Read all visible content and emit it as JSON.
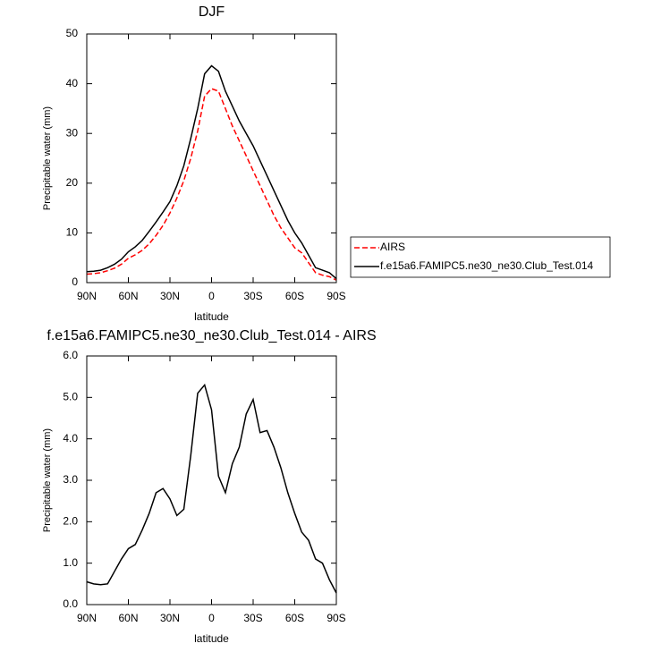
{
  "chart_data": [
    {
      "type": "line",
      "title": "DJF",
      "x_label": "latitude",
      "y_label": "Precipitable water (mm)",
      "x": [
        90,
        85,
        80,
        75,
        70,
        65,
        60,
        55,
        50,
        45,
        40,
        35,
        30,
        25,
        20,
        15,
        10,
        5,
        0,
        -5,
        -10,
        -15,
        -20,
        -25,
        -30,
        -35,
        -40,
        -45,
        -50,
        -55,
        -60,
        -65,
        -70,
        -75,
        -80,
        -85,
        -90
      ],
      "series": [
        {
          "name": "AIRS",
          "color": "#ff0000",
          "dash": true,
          "values": [
            1.7,
            1.8,
            2,
            2.4,
            2.9,
            3.7,
            4.9,
            5.6,
            6.5,
            7.8,
            9.5,
            11.5,
            14,
            17,
            20.5,
            25,
            30.5,
            37.5,
            39,
            38.5,
            35,
            31.5,
            28.5,
            25.5,
            22.5,
            19.5,
            16.5,
            13.5,
            11,
            9,
            7,
            6,
            4,
            2,
            1.5,
            1.2,
            0.5
          ]
        },
        {
          "name": "f.e15a6.FAMIPC5.ne30_ne30.Club_Test.014",
          "color": "#000000",
          "dash": false,
          "values": [
            2.2,
            2.3,
            2.5,
            3,
            3.7,
            4.7,
            6.2,
            7.2,
            8.5,
            10.3,
            12.2,
            14.2,
            16.3,
            19.5,
            23.5,
            29,
            35,
            42,
            43.6,
            42.5,
            38.5,
            35.5,
            32.5,
            30,
            27.5,
            24.5,
            21.5,
            18.5,
            15.5,
            12.5,
            10,
            8,
            5.5,
            3,
            2.5,
            2,
            0.8
          ]
        }
      ],
      "xlim": [
        90,
        -90
      ],
      "xticks": [
        {
          "value": 90,
          "label": "90N"
        },
        {
          "value": 60,
          "label": "60N"
        },
        {
          "value": 30,
          "label": "30N"
        },
        0,
        {
          "value": -30,
          "label": "30S"
        },
        {
          "value": -60,
          "label": "60S"
        },
        {
          "value": -90,
          "label": "90S"
        }
      ],
      "ylim": [
        0,
        50
      ],
      "yticks": [
        0,
        10,
        20,
        30,
        40,
        50
      ],
      "legend": "outside-right"
    },
    {
      "type": "line",
      "title": "f.e15a6.FAMIPC5.ne30_ne30.Club_Test.014 - AIRS",
      "x_label": "latitude",
      "y_label": "Precipitable water (mm)",
      "x": [
        90,
        85,
        80,
        75,
        70,
        65,
        60,
        55,
        50,
        45,
        40,
        35,
        30,
        25,
        20,
        15,
        10,
        5,
        0,
        -5,
        -10,
        -15,
        -20,
        -25,
        -30,
        -35,
        -40,
        -45,
        -50,
        -55,
        -60,
        -65,
        -70,
        -75,
        -80,
        -85,
        -90
      ],
      "values": [
        0.55,
        0.5,
        0.48,
        0.5,
        0.8,
        1.1,
        1.35,
        1.45,
        1.8,
        2.2,
        2.7,
        2.8,
        2.55,
        2.15,
        2.3,
        3.6,
        5.1,
        5.3,
        4.7,
        3.1,
        2.7,
        3.4,
        3.8,
        4.6,
        4.95,
        4.15,
        4.2,
        3.8,
        3.3,
        2.7,
        2.2,
        1.75,
        1.55,
        1.1,
        1.0,
        0.6,
        0.28
      ],
      "color": "#000000",
      "xlim": [
        90,
        -90
      ],
      "xticks": [
        {
          "value": 90,
          "label": "90N"
        },
        {
          "value": 60,
          "label": "60N"
        },
        {
          "value": 30,
          "label": "30N"
        },
        0,
        {
          "value": -30,
          "label": "30S"
        },
        {
          "value": -60,
          "label": "60S"
        },
        {
          "value": -90,
          "label": "90S"
        }
      ],
      "ylim": [
        0,
        6
      ],
      "yticks": [
        {
          "value": 0,
          "label": "0.0"
        },
        {
          "value": 1,
          "label": "1.0"
        },
        {
          "value": 2,
          "label": "2.0"
        },
        {
          "value": 3,
          "label": "3.0"
        },
        {
          "value": 4,
          "label": "4.0"
        },
        {
          "value": 5,
          "label": "5.0"
        },
        {
          "value": 6,
          "label": "6.0"
        }
      ]
    }
  ]
}
